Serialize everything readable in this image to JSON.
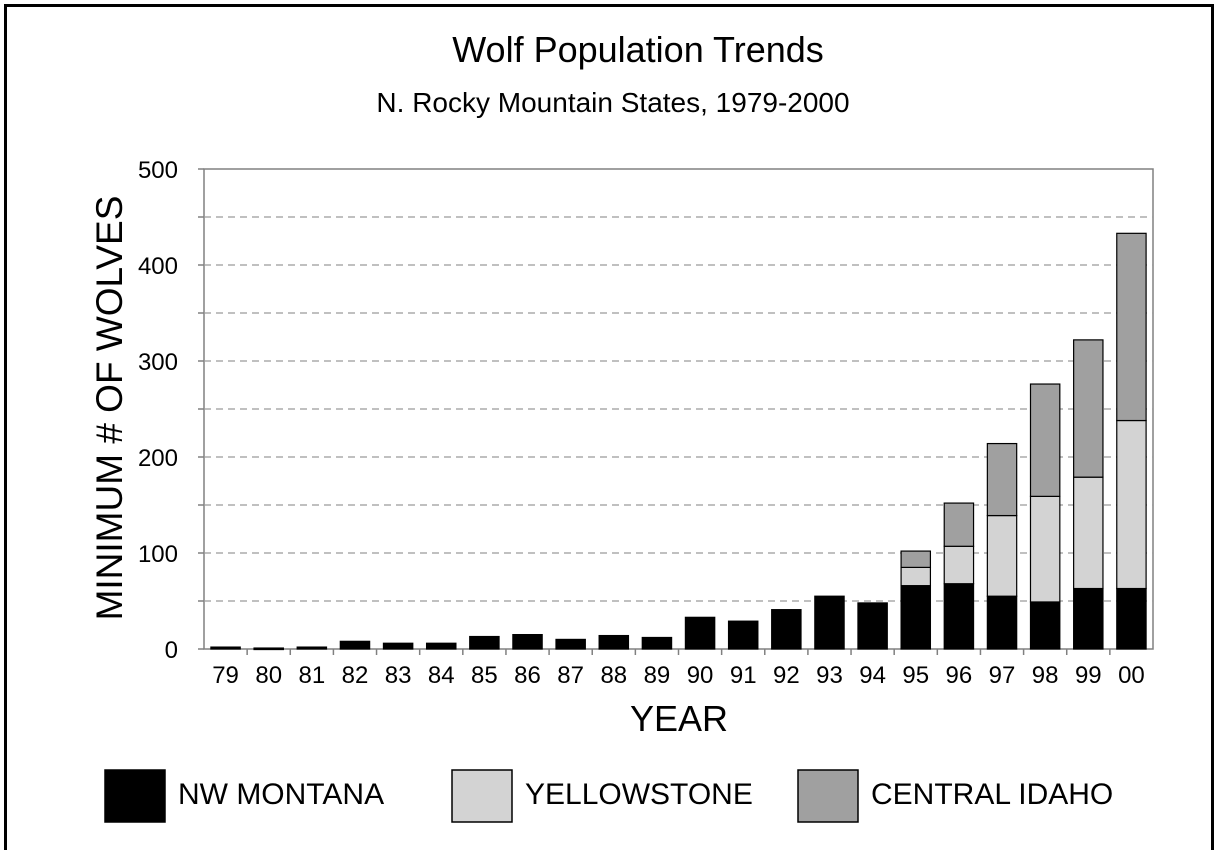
{
  "chart_data": {
    "type": "bar",
    "stacked": true,
    "title": "Wolf Population Trends",
    "subtitle": "N. Rocky Mountain States, 1979-2000",
    "xlabel": "YEAR",
    "ylabel": "MINIMUM # OF WOLVES",
    "ylim": [
      0,
      500
    ],
    "yticks": [
      0,
      100,
      200,
      300,
      400,
      500
    ],
    "grid": true,
    "legend_position": "bottom",
    "categories": [
      "79",
      "80",
      "81",
      "82",
      "83",
      "84",
      "85",
      "86",
      "87",
      "88",
      "89",
      "90",
      "91",
      "92",
      "93",
      "94",
      "95",
      "96",
      "97",
      "98",
      "99",
      "00"
    ],
    "series": [
      {
        "name": "NW MONTANA",
        "color": "#000000",
        "values": [
          2,
          1,
          2,
          8,
          6,
          6,
          13,
          15,
          10,
          14,
          12,
          33,
          29,
          41,
          55,
          48,
          66,
          68,
          55,
          49,
          63,
          63
        ]
      },
      {
        "name": "YELLOWSTONE",
        "color": "#d3d3d3",
        "values": [
          0,
          0,
          0,
          0,
          0,
          0,
          0,
          0,
          0,
          0,
          0,
          0,
          0,
          0,
          0,
          0,
          19,
          39,
          84,
          110,
          116,
          175
        ]
      },
      {
        "name": "CENTRAL IDAHO",
        "color": "#a0a0a0",
        "values": [
          0,
          0,
          0,
          0,
          0,
          0,
          0,
          0,
          0,
          0,
          0,
          0,
          0,
          0,
          0,
          0,
          17,
          45,
          75,
          117,
          143,
          195
        ]
      }
    ]
  }
}
